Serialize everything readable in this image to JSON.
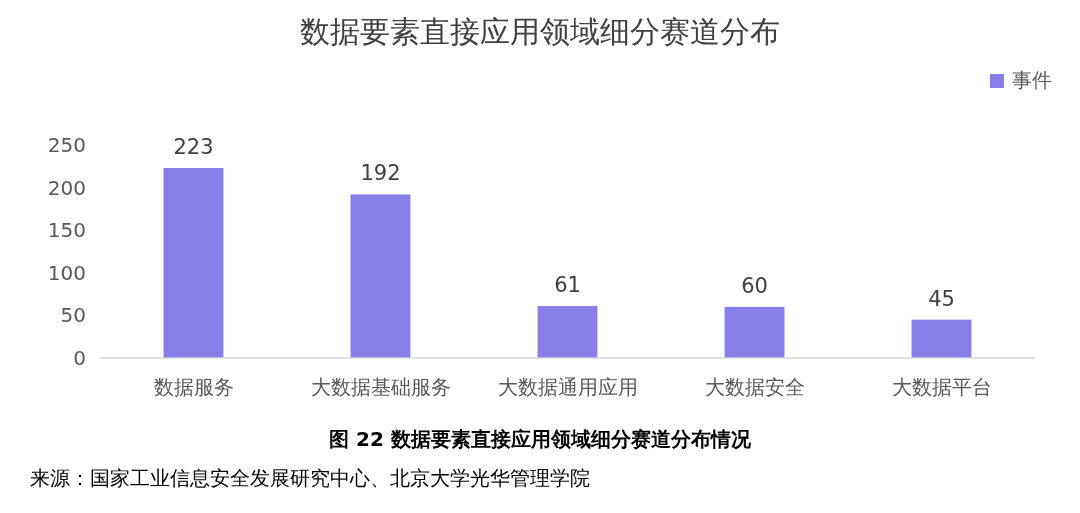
{
  "chart_data": {
    "type": "bar",
    "title": "数据要素直接应用领域细分赛道分布",
    "categories": [
      "数据服务",
      "大数据基础服务",
      "大数据通用应用",
      "大数据安全",
      "大数据平台"
    ],
    "series": [
      {
        "name": "事件",
        "color": "#877ee8",
        "values": [
          223,
          192,
          61,
          60,
          45
        ]
      }
    ],
    "ylim": [
      0,
      250
    ],
    "yticks": [
      0,
      50,
      100,
      150,
      200,
      250
    ],
    "data_labels": true,
    "legend": "top right",
    "grid": false,
    "annotations": [
      "图 22 数据要素直接应用领域细分赛道分布情况",
      "来源：国家工业信息安全发展研究中心、北京大学光华管理学院"
    ]
  }
}
